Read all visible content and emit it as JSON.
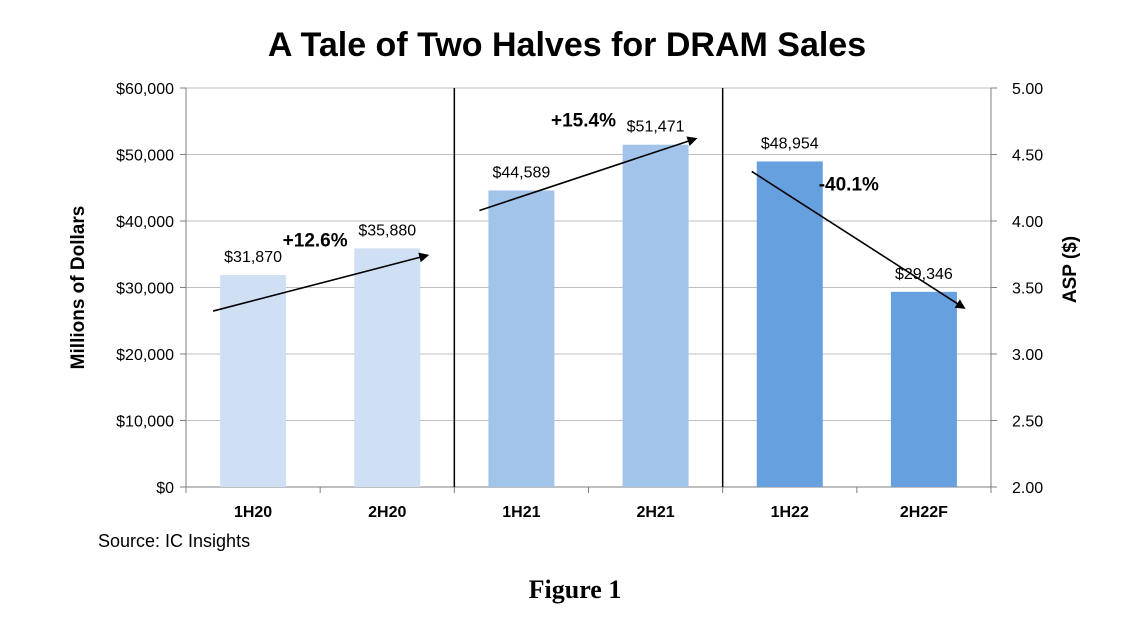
{
  "chart_data": {
    "type": "bar",
    "title": "A Tale of Two Halves for DRAM Sales",
    "categories": [
      "1H20",
      "2H20",
      "1H21",
      "2H21",
      "1H22",
      "2H22F"
    ],
    "values": [
      31870,
      35880,
      44589,
      51471,
      48954,
      29346
    ],
    "value_labels": [
      "$31,870",
      "$35,880",
      "$44,589",
      "$51,471",
      "$48,954",
      "$29,346"
    ],
    "bar_colors": [
      "#cfe0f4",
      "#cfe0f4",
      "#a2c4ea",
      "#a2c4ea",
      "#66a0de",
      "#66a0de"
    ],
    "ylabel": "Millions of Dollars",
    "ylim": [
      0,
      60000
    ],
    "y_ticks": [
      "$0",
      "$10,000",
      "$20,000",
      "$30,000",
      "$40,000",
      "$50,000",
      "$60,000"
    ],
    "y2label": "ASP ($)",
    "y2lim": [
      2.0,
      5.0
    ],
    "y2_ticks": [
      "2.00",
      "2.50",
      "3.00",
      "3.50",
      "4.00",
      "4.50",
      "5.00"
    ],
    "grid": true,
    "annotations": [
      {
        "text": "+12.6%",
        "from": "1H20",
        "to": "2H20"
      },
      {
        "text": "+15.4%",
        "from": "1H21",
        "to": "2H21"
      },
      {
        "text": "-40.1%",
        "from": "1H22",
        "to": "2H22F"
      }
    ],
    "source": "Source:  IC Insights",
    "caption": "Figure 1"
  }
}
